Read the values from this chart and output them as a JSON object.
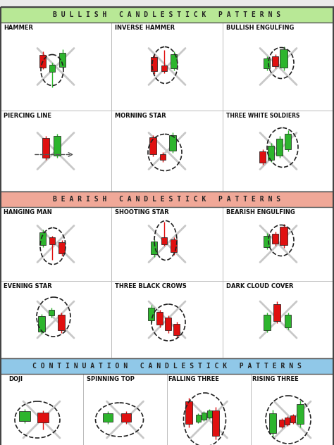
{
  "title_bullish": "B U L L I S H   C A N D L E S T I C K   P A T T E R N S",
  "title_bearish": "B E A R I S H   C A N D L E S T I C K   P A T T E R N S",
  "title_continuation": "C O N T I N U A T I O N   C A N D L E S T I C K   P A T T E R N S",
  "green": "#2db52d",
  "red": "#e01010",
  "gray_x": "#c0c0c0",
  "white": "#ffffff",
  "bullish_header_color": "#b8e896",
  "bearish_header_color": "#f0a898",
  "continuation_header_color": "#90c8e8",
  "section_bg": "#f8f8f8"
}
